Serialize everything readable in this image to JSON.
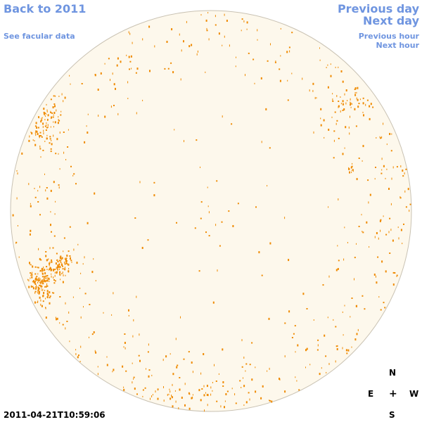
{
  "nav": {
    "back": "Back to 2011",
    "facular": "See facular data",
    "prev_day": "Previous day",
    "next_day": "Next day",
    "prev_hour": "Previous hour",
    "next_hour": "Next hour"
  },
  "compass": {
    "n": "N",
    "e": "E",
    "center": "+",
    "w": "W",
    "s": "S"
  },
  "timestamp": "2011-04-21T10:59:06",
  "colors": {
    "disk_fill": "#fdf8ec",
    "disk_stroke": "#c9c2b3",
    "facula": "#ef8a00",
    "link": "#6f95e0"
  }
}
